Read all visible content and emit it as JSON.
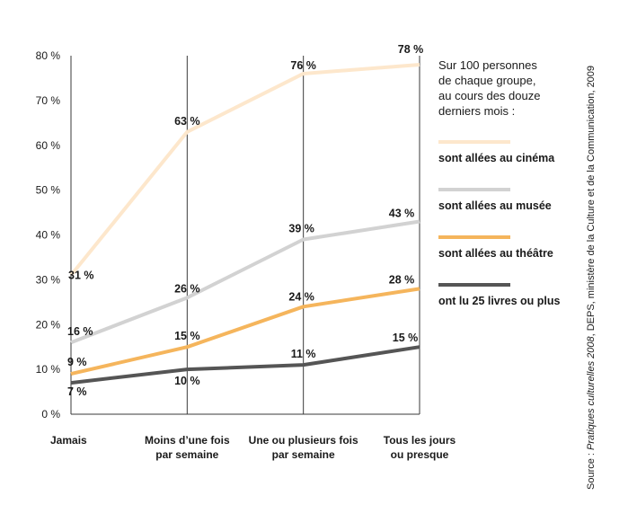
{
  "chart_data": {
    "type": "line",
    "categories": [
      [
        "Jamais"
      ],
      [
        "Moins d’une fois",
        "par semaine"
      ],
      [
        "Une ou plusieurs fois",
        "par semaine"
      ],
      [
        "Tous les jours",
        "ou presque"
      ]
    ],
    "yticks": [
      "0 %",
      "10 %",
      "20 %",
      "30 %",
      "40 %",
      "50 %",
      "60 %",
      "70 %",
      "80 %"
    ],
    "ylim": [
      0,
      80
    ],
    "grid": "vertical",
    "series": [
      {
        "name": "sont allées au cinéma",
        "color": "#fde7cc",
        "values": [
          31,
          63,
          76,
          78
        ],
        "labels": [
          "31 %",
          "63 %",
          "76 %",
          "78 %"
        ]
      },
      {
        "name": "sont allées au musée",
        "color": "#d2d2d2",
        "values": [
          16,
          26,
          39,
          43
        ],
        "labels": [
          "16 %",
          "26 %",
          "39 %",
          "43 %"
        ]
      },
      {
        "name": "sont allées au théâtre",
        "color": "#f5b55c",
        "values": [
          9,
          15,
          24,
          28
        ],
        "labels": [
          "9 %",
          "15 %",
          "24 %",
          "28 %"
        ]
      },
      {
        "name": "ont lu 25 livres ou plus",
        "color": "#555555",
        "values": [
          7,
          10,
          11,
          15
        ],
        "labels": [
          "7 %",
          "10 %",
          "11 %",
          "15 %"
        ]
      }
    ]
  },
  "legend": {
    "intro_lines": [
      "Sur 100 personnes",
      "de chaque groupe,",
      "au cours des douze",
      "derniers mois :"
    ]
  },
  "source": {
    "prefix": "Source : ",
    "italic": "Pratiques culturelles 2008",
    "suffix": ", DEPS, ministère de la Culture et de la Communication, 2009"
  }
}
